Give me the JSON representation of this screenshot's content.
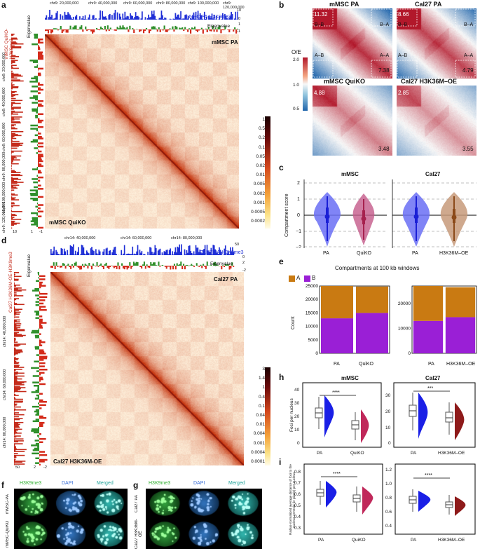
{
  "panels": {
    "a": {
      "label": "a",
      "top_coords": [
        "chr9: 20,000,000",
        "chr9: 40,000,000",
        "chr9: 60,000,000",
        "chr9: 80,000,000",
        "chr9: 100,000,000",
        "chr9: 120,000,000"
      ],
      "left_coords": [
        "chr9: 20,000,000",
        "chr9: 40,000,000",
        "chr9: 60,000,000",
        "chr9: 80,000,000",
        "chr9: 100,000,000",
        "chr9: 120,000,000"
      ],
      "track_label": "mMSC PA-H3K9me3",
      "eigen_label": "Eigenvalue",
      "left_track_label": "mMSC QuiKO-H3K9me3",
      "left_eigen_label": "Eigenvalue",
      "top_ticks": [
        "10",
        "0",
        "1",
        "-1"
      ],
      "left_ticks": [
        "10",
        "1",
        "-1"
      ],
      "upper_sample": "mMSC PA",
      "lower_sample": "mMSC QuiKO",
      "colorbar": [
        "1",
        "0.5",
        "0.2",
        "0.1",
        "0.05",
        "0.02",
        "0.01",
        "0.005",
        "0.002",
        "0.001",
        "0.0005",
        "0.0002"
      ]
    },
    "b": {
      "label": "b",
      "tiles": [
        {
          "title": "mMSC PA",
          "corner": "11.32",
          "value": "7.38"
        },
        {
          "title": "Cal27 PA",
          "corner": "8.66",
          "value": "4.79"
        },
        {
          "title": "mMSC QuiKO",
          "corner": "4.88",
          "value": "3.48"
        },
        {
          "title": "Cal27 H3K36M–OE",
          "corner": "2.85",
          "value": "3.55"
        }
      ],
      "labels": {
        "bb": "B–B",
        "ba": "B–A",
        "ab": "A–B",
        "aa": "A–A"
      },
      "colorbar_title": "O/E",
      "colorbar_ticks": [
        "2.0",
        "1.0",
        "0.5"
      ]
    },
    "c": {
      "label": "c",
      "ylabel": "Compartment score",
      "groups": [
        {
          "title": "mMSC",
          "samples": [
            "PA",
            "QuiKO"
          ]
        },
        {
          "title": "Cal27",
          "samples": [
            "PA",
            "H3K36M–OE"
          ]
        }
      ],
      "yticks": [
        "2",
        "1",
        "0",
        "−1",
        "−2"
      ]
    },
    "d": {
      "label": "d",
      "top_coords": [
        "chr14: 40,000,000",
        "chr14: 60,000,000",
        "chr14: 80,000,000"
      ],
      "left_coords": [
        "chr14: 40,000,000",
        "chr14: 60,000,000",
        "chr14: 80,000,000"
      ],
      "track_label": "Cal27 PA-H3K9me3",
      "eigen_label": "Eigenvalue",
      "left_track_label": "Cal27 H3K36M-OE-H3K9me3",
      "left_eigen_label": "Eigenvalue",
      "top_ticks": [
        "50",
        "0",
        "2",
        "-2"
      ],
      "left_ticks": [
        "50",
        "2",
        "-2"
      ],
      "upper_sample": "Cal27 PA",
      "lower_sample": "Cal27 H3K36M-OE",
      "colorbar": [
        "3",
        "1.4",
        "1",
        "0.4",
        "0.1",
        "0.04",
        "0.01",
        "0.004",
        "0.001",
        "0.0004",
        "0.0001"
      ]
    },
    "e": {
      "label": "e",
      "title": "Compartments at 100 kb windows",
      "legend": [
        {
          "name": "A",
          "color": "#c97a12"
        },
        {
          "name": "B",
          "color": "#9a1fd6"
        }
      ],
      "ylabel": "Count",
      "yticks_left": [
        "25000",
        "20000",
        "15000",
        "10000",
        "5000",
        "0"
      ],
      "yticks_right": [
        "20000",
        "10000",
        "0"
      ]
    },
    "f": {
      "label": "f",
      "columns": [
        "H3K9me3",
        "DAPI",
        "Merged"
      ],
      "rows": [
        "mMSC-PA",
        "mMSC-QuiKO"
      ]
    },
    "g": {
      "label": "g",
      "columns": [
        "H3K9me3",
        "DAPI",
        "Merged"
      ],
      "rows": [
        "Cal27 PA",
        "Cal27 H3K36M-OE"
      ]
    },
    "h": {
      "label": "h",
      "groups": [
        "mMSC",
        "Cal27"
      ],
      "ylabel": "Foci per nucleus",
      "sig_left": "****",
      "sig_right": "***",
      "xlabels_left": [
        "PA",
        "QuiKO"
      ],
      "xlabels_right": [
        "PA",
        "H3K36M–OE"
      ],
      "yticks_left": [
        "40",
        "30",
        "20",
        "10",
        "0"
      ],
      "yticks_right": [
        "30",
        "20",
        "10",
        "0"
      ]
    },
    "i": {
      "label": "i",
      "ylabel": "Radius-normalized average distance of foci to the nucleus centroid (in pixels) per nucleus",
      "sig_left": "****",
      "sig_right": "****",
      "xlabels_left": [
        "PA",
        "QuiKO"
      ],
      "xlabels_right": [
        "PA",
        "H3K36M–OE"
      ],
      "yticks_left": [
        "0.8",
        "0.7",
        "0.6",
        "0.5",
        "0.4",
        "0.3"
      ],
      "yticks_right": [
        "1.2",
        "1.0",
        "0.8",
        "0.6",
        "0.4"
      ]
    }
  },
  "chart_data": [
    {
      "type": "bar",
      "title": "Compartments at 100 kb windows",
      "ylabel": "Count",
      "categories": [
        "PA",
        "QuiKO"
      ],
      "series": [
        {
          "name": "B",
          "values": [
            13000,
            15000
          ]
        },
        {
          "name": "A",
          "values": [
            12000,
            9800
          ]
        }
      ],
      "ylim": [
        0,
        25000
      ]
    },
    {
      "type": "bar",
      "title": "",
      "ylabel": "Count",
      "categories": [
        "PA",
        "H3K36M–OE"
      ],
      "series": [
        {
          "name": "B",
          "values": [
            13000,
            14500
          ]
        },
        {
          "name": "A",
          "values": [
            14000,
            12000
          ]
        }
      ],
      "ylim": [
        0,
        27000
      ]
    }
  ],
  "colors": {
    "a_color": "#c97a12",
    "b_color": "#9a1fd6",
    "h3k9_blue": "#1f2fd6",
    "eig_red": "#d42a1a",
    "eig_green": "#2f8f2a"
  }
}
